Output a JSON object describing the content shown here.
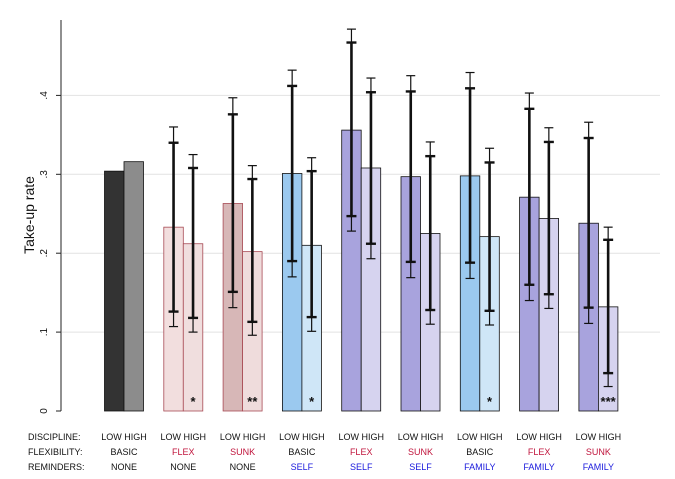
{
  "chart_data": {
    "type": "bar",
    "ylabel": "Take-up rate",
    "ylim": [
      0,
      0.5
    ],
    "yticks": [
      0,
      0.1,
      0.2,
      0.3,
      0.4
    ],
    "ytick_labels": [
      "0",
      ".1",
      ".2",
      ".3",
      ".4"
    ],
    "grid": true,
    "row_labels": {
      "discipline": "DISCIPLINE:",
      "flexibility": "FLEXIBILITY:",
      "reminders": "REMINDERS:"
    },
    "groups": [
      {
        "discipline": "LOW HIGH",
        "flexibility": "BASIC",
        "reminders": "NONE",
        "values": [
          0.304,
          0.316
        ],
        "ci_high": [
          null,
          null
        ],
        "ci_low": [
          null,
          null
        ],
        "ci90_high": [
          null,
          null
        ],
        "ci90_low": [
          null,
          null
        ],
        "stars": [
          "",
          ""
        ],
        "colors": [
          "#333333",
          "#8c8c8c"
        ],
        "flex_color": "#111111",
        "rem_color": "#111111"
      },
      {
        "discipline": "LOW HIGH",
        "flexibility": "FLEX",
        "reminders": "NONE",
        "values": [
          0.233,
          0.212
        ],
        "ci_high": [
          0.36,
          0.325
        ],
        "ci_low": [
          0.107,
          0.1
        ],
        "ci90_high": [
          0.34,
          0.308
        ],
        "ci90_low": [
          0.126,
          0.118
        ],
        "stars": [
          "",
          "*"
        ],
        "colors": [
          "#f2dede",
          "#f0dede"
        ],
        "flex_color": "#c0143c",
        "rem_color": "#111111"
      },
      {
        "discipline": "LOW HIGH",
        "flexibility": "SUNK",
        "reminders": "NONE",
        "values": [
          0.263,
          0.202
        ],
        "ci_high": [
          0.397,
          0.311
        ],
        "ci_low": [
          0.131,
          0.096
        ],
        "ci90_high": [
          0.376,
          0.294
        ],
        "ci90_low": [
          0.151,
          0.113
        ],
        "stars": [
          "",
          "**"
        ],
        "colors": [
          "#d7b7b7",
          "#efdcdc"
        ],
        "flex_color": "#c0143c",
        "rem_color": "#111111"
      },
      {
        "discipline": "LOW HIGH",
        "flexibility": "BASIC",
        "reminders": "SELF",
        "values": [
          0.301,
          0.21
        ],
        "ci_high": [
          0.432,
          0.321
        ],
        "ci_low": [
          0.17,
          0.101
        ],
        "ci90_high": [
          0.412,
          0.304
        ],
        "ci90_low": [
          0.19,
          0.119
        ],
        "stars": [
          "",
          "*"
        ],
        "colors": [
          "#9bc9ef",
          "#cfe6f7"
        ],
        "flex_color": "#111111",
        "rem_color": "#1a1adc"
      },
      {
        "discipline": "LOW HIGH",
        "flexibility": "FLEX",
        "reminders": "SELF",
        "values": [
          0.356,
          0.308
        ],
        "ci_high": [
          0.484,
          0.422
        ],
        "ci_low": [
          0.228,
          0.193
        ],
        "ci90_high": [
          0.467,
          0.404
        ],
        "ci90_low": [
          0.247,
          0.212
        ],
        "stars": [
          "",
          ""
        ],
        "colors": [
          "#a8a3dd",
          "#d6d3ef"
        ],
        "flex_color": "#c0143c",
        "rem_color": "#1a1adc"
      },
      {
        "discipline": "LOW HIGH",
        "flexibility": "SUNK",
        "reminders": "SELF",
        "values": [
          0.297,
          0.225
        ],
        "ci_high": [
          0.425,
          0.341
        ],
        "ci_low": [
          0.169,
          0.11
        ],
        "ci90_high": [
          0.405,
          0.323
        ],
        "ci90_low": [
          0.189,
          0.128
        ],
        "stars": [
          "",
          ""
        ],
        "colors": [
          "#a8a3dd",
          "#d6d3ef"
        ],
        "flex_color": "#c0143c",
        "rem_color": "#1a1adc"
      },
      {
        "discipline": "LOW HIGH",
        "flexibility": "BASIC",
        "reminders": "FAMILY",
        "values": [
          0.298,
          0.221
        ],
        "ci_high": [
          0.429,
          0.333
        ],
        "ci_low": [
          0.168,
          0.109
        ],
        "ci90_high": [
          0.409,
          0.315
        ],
        "ci90_low": [
          0.188,
          0.127
        ],
        "stars": [
          "",
          "*"
        ],
        "colors": [
          "#9bc9ef",
          "#cfe6f7"
        ],
        "flex_color": "#111111",
        "rem_color": "#1a1adc"
      },
      {
        "discipline": "LOW HIGH",
        "flexibility": "FLEX",
        "reminders": "FAMILY",
        "values": [
          0.271,
          0.244
        ],
        "ci_high": [
          0.403,
          0.359
        ],
        "ci_low": [
          0.14,
          0.13
        ],
        "ci90_high": [
          0.383,
          0.341
        ],
        "ci90_low": [
          0.16,
          0.148
        ],
        "stars": [
          "",
          ""
        ],
        "colors": [
          "#a8a3dd",
          "#d6d3ef"
        ],
        "flex_color": "#c0143c",
        "rem_color": "#1a1adc"
      },
      {
        "discipline": "LOW HIGH",
        "flexibility": "SUNK",
        "reminders": "FAMILY",
        "values": [
          0.238,
          0.132
        ],
        "ci_high": [
          0.366,
          0.233
        ],
        "ci_low": [
          0.111,
          0.031
        ],
        "ci90_high": [
          0.346,
          0.217
        ],
        "ci90_low": [
          0.131,
          0.048
        ],
        "stars": [
          "",
          "***"
        ],
        "colors": [
          "#a8a3dd",
          "#d6d3ef"
        ],
        "flex_color": "#c0143c",
        "rem_color": "#1a1adc"
      }
    ]
  }
}
